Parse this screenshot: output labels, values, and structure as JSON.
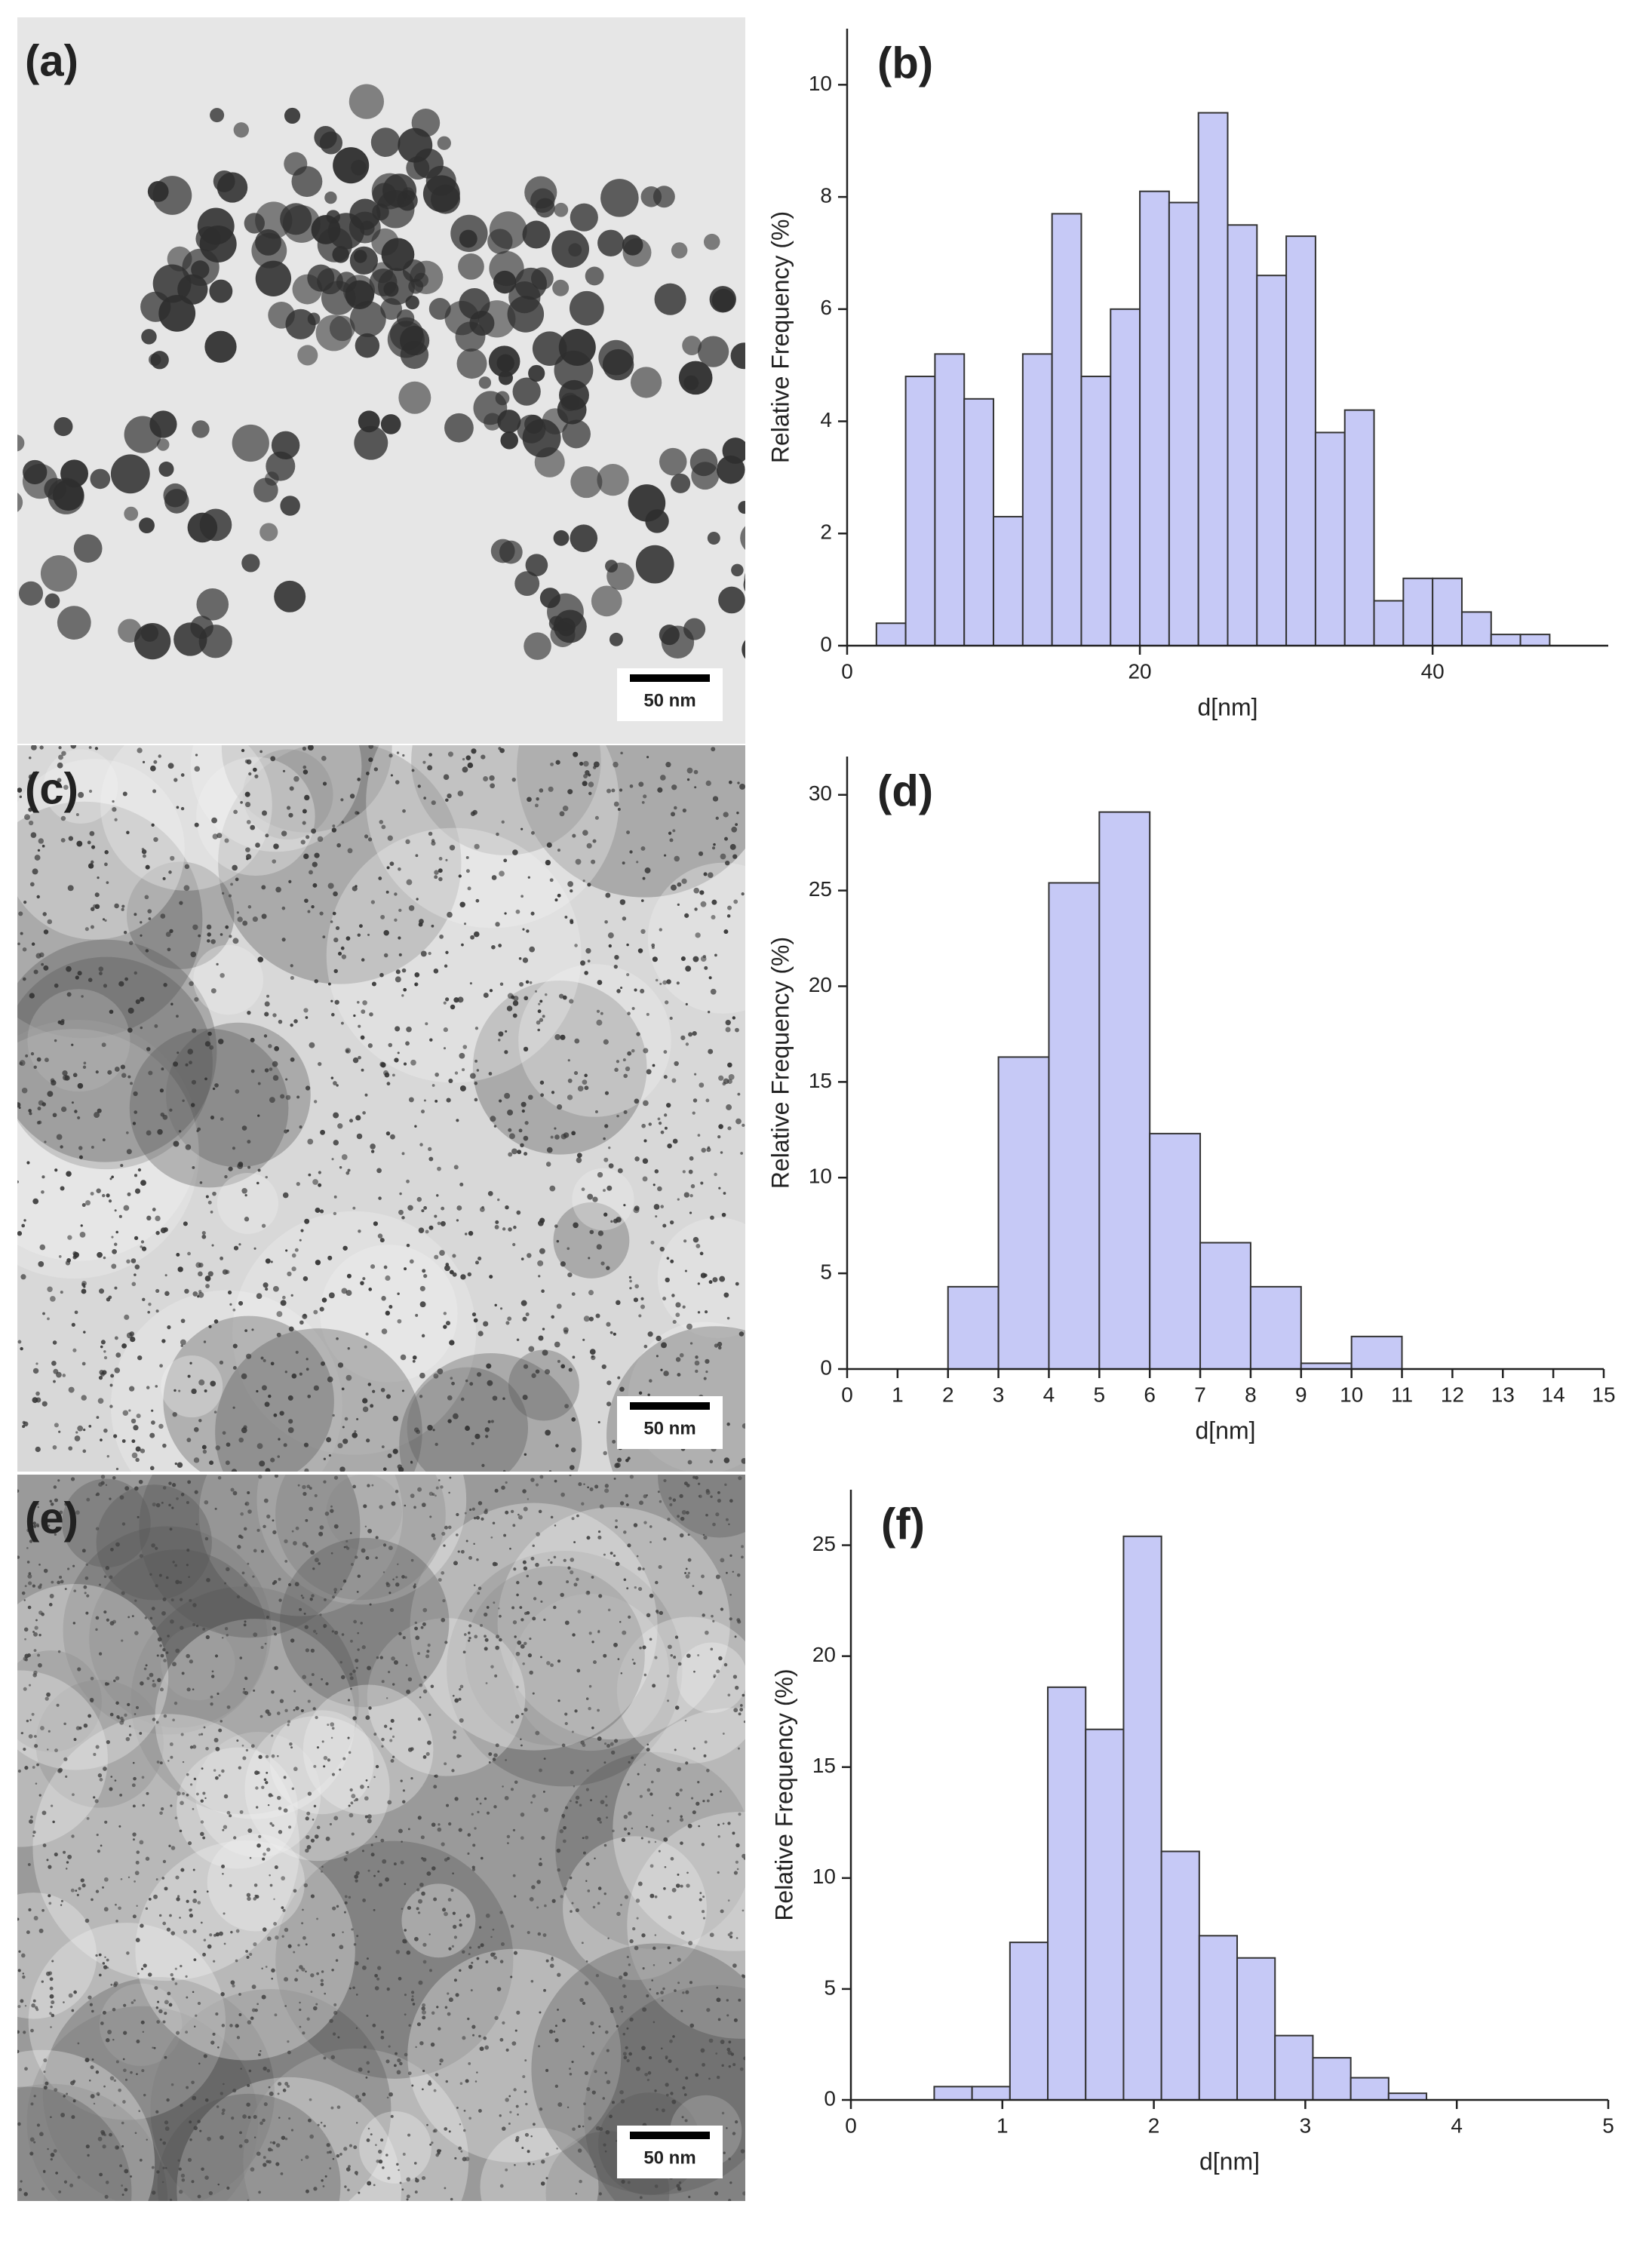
{
  "images": [
    {
      "label": "(a)",
      "scale_bar": "50 nm"
    },
    {
      "label": "(c)",
      "scale_bar": "50 nm"
    },
    {
      "label": "(e)",
      "scale_bar": "50 nm"
    }
  ],
  "chart_data": [
    {
      "type": "histogram",
      "label": "(b)",
      "x_label": "d[nm]",
      "y_label": "Relative Frequency (%)",
      "color": "#c6c9f6",
      "bins": [
        2,
        4,
        6,
        8,
        10,
        12,
        14,
        16,
        18,
        20,
        22,
        24,
        26,
        28,
        30,
        32,
        34,
        36,
        38,
        40,
        42,
        44,
        46,
        48
      ],
      "values": [
        0.4,
        4.8,
        5.2,
        4.4,
        2.3,
        5.2,
        7.7,
        4.8,
        6.0,
        8.1,
        7.9,
        9.5,
        7.5,
        6.6,
        7.3,
        3.8,
        4.2,
        0.8,
        1.2,
        1.2,
        0.6,
        0.2,
        0.2
      ],
      "xlim": [
        0,
        52
      ],
      "xticks": [
        0,
        20,
        40
      ],
      "ylim": [
        0,
        11
      ],
      "yticks": [
        0,
        2,
        4,
        6,
        8,
        10
      ]
    },
    {
      "type": "histogram",
      "label": "(d)",
      "x_label": "d[nm]",
      "y_label": "Relative Frequency (%)",
      "color": "#c6c9f6",
      "bins": [
        2,
        3,
        4,
        5,
        6,
        7,
        8,
        9,
        10,
        11
      ],
      "values": [
        4.3,
        16.3,
        25.4,
        29.1,
        12.3,
        6.6,
        4.3,
        0.3,
        1.7
      ],
      "xlim": [
        0,
        15
      ],
      "xticks": [
        0,
        1,
        2,
        3,
        4,
        5,
        6,
        7,
        8,
        9,
        10,
        11,
        12,
        13,
        14,
        15
      ],
      "ylim": [
        0,
        32
      ],
      "yticks": [
        0,
        5,
        10,
        15,
        20,
        25,
        30
      ]
    },
    {
      "type": "histogram",
      "label": "(f)",
      "x_label": "d[nm]",
      "y_label": "Relative Frequency (%)",
      "color": "#c6c9f6",
      "bins": [
        0.55,
        0.8,
        1.05,
        1.3,
        1.55,
        1.8,
        2.05,
        2.3,
        2.55,
        2.8,
        3.05,
        3.3,
        3.55,
        3.8
      ],
      "values": [
        0.6,
        0.6,
        7.1,
        18.6,
        16.7,
        25.4,
        11.2,
        7.4,
        6.4,
        2.9,
        1.9,
        1.0,
        0.3
      ],
      "xlim": [
        0,
        5
      ],
      "xticks": [
        0,
        1,
        2,
        3,
        4,
        5
      ],
      "ylim": [
        0,
        27.5
      ],
      "yticks": [
        0,
        5,
        10,
        15,
        20,
        25
      ]
    }
  ]
}
